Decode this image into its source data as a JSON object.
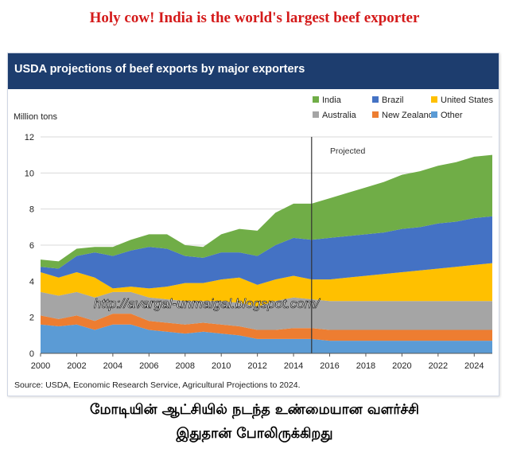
{
  "headline": "Holy cow! India is the world's largest beef exporter",
  "caption": {
    "line1": "மோடியின் ஆட்சியில் நடந்த உண்மையான வளர்ச்சி",
    "line2": "இதுதான் போலிருக்கிறது"
  },
  "watermark": "http://avargal-unmaigal.blogspot.com/",
  "chart_data": {
    "type": "area",
    "stacked": true,
    "title": "USDA projections of beef exports by major exporters",
    "ylabel": "Million tons",
    "xlabel": "",
    "xlim": [
      2000,
      2025
    ],
    "ylim": [
      0,
      12
    ],
    "yticks": [
      0,
      2,
      4,
      6,
      8,
      10,
      12
    ],
    "xticks": [
      2000,
      2002,
      2004,
      2006,
      2008,
      2010,
      2012,
      2014,
      2016,
      2018,
      2020,
      2022,
      2024
    ],
    "divider_year": 2015,
    "projection_label": "Projected",
    "source": "Source: USDA, Economic Research Service, Agricultural Projections to 2024.",
    "x": [
      2000,
      2001,
      2002,
      2003,
      2004,
      2005,
      2006,
      2007,
      2008,
      2009,
      2010,
      2011,
      2012,
      2013,
      2014,
      2015,
      2016,
      2017,
      2018,
      2019,
      2020,
      2021,
      2022,
      2023,
      2024,
      2025
    ],
    "series": [
      {
        "name": "Other",
        "color": "#5b9bd5",
        "values": [
          1.6,
          1.5,
          1.6,
          1.3,
          1.6,
          1.6,
          1.3,
          1.2,
          1.1,
          1.2,
          1.1,
          1.0,
          0.8,
          0.8,
          0.8,
          0.8,
          0.7,
          0.7,
          0.7,
          0.7,
          0.7,
          0.7,
          0.7,
          0.7,
          0.7,
          0.7
        ]
      },
      {
        "name": "New Zealand",
        "color": "#ed7d31",
        "values": [
          0.5,
          0.4,
          0.5,
          0.5,
          0.6,
          0.6,
          0.5,
          0.5,
          0.5,
          0.5,
          0.5,
          0.5,
          0.5,
          0.5,
          0.6,
          0.6,
          0.6,
          0.6,
          0.6,
          0.6,
          0.6,
          0.6,
          0.6,
          0.6,
          0.6,
          0.6
        ]
      },
      {
        "name": "Australia",
        "color": "#a5a5a5",
        "values": [
          1.3,
          1.3,
          1.3,
          1.3,
          1.2,
          1.2,
          1.3,
          1.3,
          1.3,
          1.2,
          1.3,
          1.3,
          1.3,
          1.6,
          1.7,
          1.6,
          1.6,
          1.6,
          1.6,
          1.6,
          1.6,
          1.6,
          1.6,
          1.6,
          1.6,
          1.6
        ]
      },
      {
        "name": "United States",
        "color": "#ffc000",
        "values": [
          1.1,
          1.0,
          1.1,
          1.1,
          0.2,
          0.3,
          0.5,
          0.7,
          1.0,
          1.0,
          1.2,
          1.4,
          1.2,
          1.2,
          1.2,
          1.1,
          1.2,
          1.3,
          1.4,
          1.5,
          1.6,
          1.7,
          1.8,
          1.9,
          2.0,
          2.1
        ]
      },
      {
        "name": "Brazil",
        "color": "#4472c4",
        "values": [
          0.3,
          0.5,
          0.9,
          1.4,
          1.8,
          2.0,
          2.3,
          2.1,
          1.5,
          1.4,
          1.5,
          1.4,
          1.6,
          1.9,
          2.1,
          2.2,
          2.3,
          2.3,
          2.3,
          2.3,
          2.4,
          2.4,
          2.5,
          2.5,
          2.6,
          2.6
        ]
      },
      {
        "name": "India",
        "color": "#70ad47",
        "values": [
          0.4,
          0.4,
          0.4,
          0.3,
          0.5,
          0.6,
          0.7,
          0.8,
          0.6,
          0.6,
          1.0,
          1.3,
          1.4,
          1.8,
          1.9,
          2.0,
          2.2,
          2.4,
          2.6,
          2.8,
          3.0,
          3.1,
          3.2,
          3.3,
          3.4,
          3.4
        ]
      }
    ],
    "legend": [
      {
        "name": "India",
        "color": "#70ad47"
      },
      {
        "name": "Brazil",
        "color": "#4472c4"
      },
      {
        "name": "United States",
        "color": "#ffc000"
      },
      {
        "name": "Australia",
        "color": "#a5a5a5"
      },
      {
        "name": "New Zealand",
        "color": "#ed7d31"
      },
      {
        "name": "Other",
        "color": "#5b9bd5"
      }
    ]
  }
}
